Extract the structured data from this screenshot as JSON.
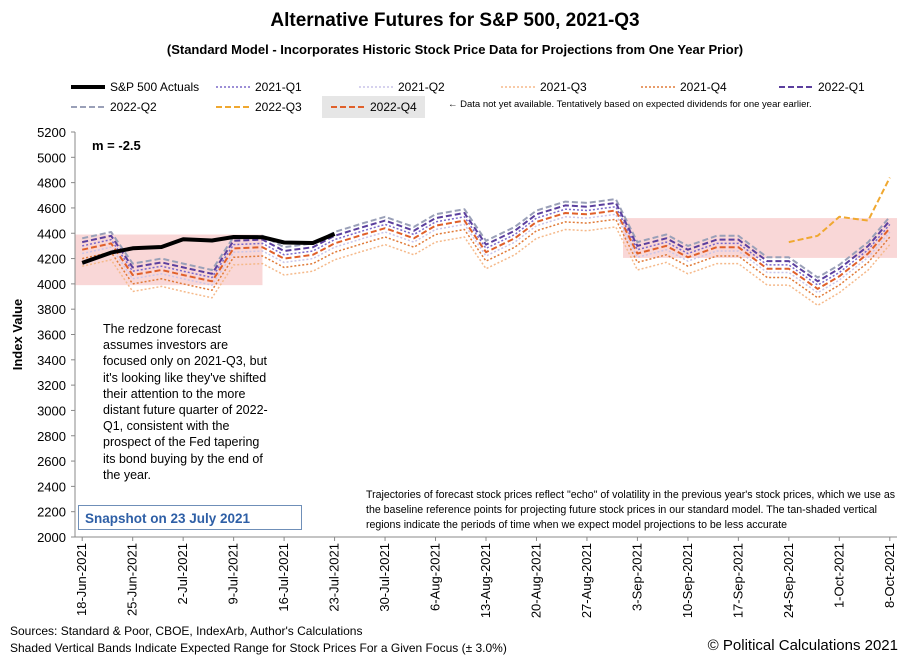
{
  "chart_data": {
    "type": "line",
    "title": "Alternative Futures for S&P 500, 2021-Q3",
    "subtitle": "(Standard Model - Incorporates Historic Stock Price Data for Projections from One Year Prior)",
    "y_label": "Index Value",
    "legend_note": "← Data not yet available.  Tentatively based on expected dividends for one year earlier.",
    "annotation_m": "m = -2.5",
    "annotation_left": "The redzone forecast assumes investors are focused only on 2021-Q3, but it's looking like they've  shifted their attention to the more distant future quarter of 2022-Q1, consistent with the prospect of the Fed tapering its bond buying by the end of the year.",
    "snapshot": "Snapshot on 23 July 2021",
    "annotation_right": "Trajectories of forecast stock prices reflect \"echo\" of volatility in  the previous year's stock prices, which we use as the baseline reference points for projecting future stock prices in our standard model.   The tan-shaded vertical regions indicate the periods of time when we expect model projections to be less accurate",
    "sources": "Sources: Standard & Poor, CBOE, IndexArb, Author's Calculations",
    "sources_note": "Shaded Vertical Bands Indicate Expected Range for Stock Prices For a Given Focus (± 3.0%)",
    "copyright": "© Political Calculations 2021",
    "x": [
      "2021-06-18",
      "2021-06-22",
      "2021-06-25",
      "2021-06-29",
      "2021-07-02",
      "2021-07-06",
      "2021-07-09",
      "2021-07-13",
      "2021-07-16",
      "2021-07-20",
      "2021-07-23",
      "2021-07-27",
      "2021-07-30",
      "2021-08-03",
      "2021-08-06",
      "2021-08-10",
      "2021-08-13",
      "2021-08-17",
      "2021-08-20",
      "2021-08-24",
      "2021-08-27",
      "2021-08-31",
      "2021-09-03",
      "2021-09-07",
      "2021-09-10",
      "2021-09-14",
      "2021-09-17",
      "2021-09-21",
      "2021-09-24",
      "2021-09-28",
      "2021-10-01",
      "2021-10-05",
      "2021-10-08"
    ],
    "xlim": [
      "2021-06-17",
      "2021-10-09"
    ],
    "xticks": [
      {
        "value": "2021-06-18",
        "label": "18-Jun-2021"
      },
      {
        "value": "2021-06-25",
        "label": "25-Jun-2021"
      },
      {
        "value": "2021-07-02",
        "label": "2-Jul-2021"
      },
      {
        "value": "2021-07-09",
        "label": "9-Jul-2021"
      },
      {
        "value": "2021-07-16",
        "label": "16-Jul-2021"
      },
      {
        "value": "2021-07-23",
        "label": "23-Jul-2021"
      },
      {
        "value": "2021-07-30",
        "label": "30-Jul-2021"
      },
      {
        "value": "2021-08-06",
        "label": "6-Aug-2021"
      },
      {
        "value": "2021-08-13",
        "label": "13-Aug-2021"
      },
      {
        "value": "2021-08-20",
        "label": "20-Aug-2021"
      },
      {
        "value": "2021-08-27",
        "label": "27-Aug-2021"
      },
      {
        "value": "2021-09-03",
        "label": "3-Sep-2021"
      },
      {
        "value": "2021-09-10",
        "label": "10-Sep-2021"
      },
      {
        "value": "2021-09-17",
        "label": "17-Sep-2021"
      },
      {
        "value": "2021-09-24",
        "label": "24-Sep-2021"
      },
      {
        "value": "2021-10-01",
        "label": "1-Oct-2021"
      },
      {
        "value": "2021-10-08",
        "label": "8-Oct-2021"
      }
    ],
    "ylim": [
      2000,
      5200
    ],
    "yticks": [
      2000,
      2200,
      2400,
      2600,
      2800,
      3000,
      3200,
      3400,
      3600,
      3800,
      4000,
      4200,
      4400,
      4600,
      4800,
      5000,
      5200
    ],
    "redzone_color": "#f6c6c6",
    "redzones": [
      {
        "from": "2021-06-17",
        "to": "2021-07-13",
        "low": 3990,
        "high": 4390
      },
      {
        "from": "2021-09-01",
        "to": "2021-10-09",
        "low": 4205,
        "high": 4520
      }
    ],
    "series": [
      {
        "name": "S&P 500 Actuals",
        "color": "#000000",
        "dash": "solid",
        "values": [
          4166,
          4247,
          4281,
          4291,
          4352,
          4343,
          4370,
          4369,
          4327,
          4323,
          4395,
          null,
          null,
          null,
          null,
          null,
          null,
          null,
          null,
          null,
          null,
          null,
          null,
          null,
          null,
          null,
          null,
          null,
          null,
          null,
          null,
          null,
          null
        ]
      },
      {
        "name": "2021-Q1",
        "color": "#7b68c8",
        "dash": "dotted",
        "values": [
          4300,
          4350,
          4100,
          4140,
          4100,
          4050,
          4310,
          4320,
          4230,
          4260,
          4350,
          4420,
          4470,
          4390,
          4490,
          4530,
          4280,
          4390,
          4520,
          4590,
          4580,
          4610,
          4270,
          4330,
          4240,
          4320,
          4320,
          4150,
          4150,
          3990,
          4090,
          4270,
          4470
        ]
      },
      {
        "name": "2021-Q2",
        "color": "#c9c4e8",
        "dash": "dotted",
        "values": [
          4240,
          4290,
          4040,
          4080,
          4040,
          3990,
          4250,
          4260,
          4170,
          4200,
          4290,
          4360,
          4410,
          4330,
          4430,
          4470,
          4220,
          4330,
          4460,
          4530,
          4520,
          4550,
          4210,
          4270,
          4180,
          4260,
          4260,
          4090,
          4090,
          3930,
          4030,
          4210,
          4410
        ]
      },
      {
        "name": "2021-Q3",
        "color": "#f5b98a",
        "dash": "dotted",
        "values": [
          4140,
          4190,
          3940,
          3980,
          3940,
          3890,
          4150,
          4160,
          4070,
          4100,
          4190,
          4260,
          4310,
          4230,
          4330,
          4370,
          4120,
          4230,
          4360,
          4430,
          4420,
          4450,
          4110,
          4170,
          4080,
          4160,
          4160,
          3990,
          3990,
          3830,
          3930,
          4110,
          4310
        ]
      },
      {
        "name": "2021-Q4",
        "color": "#e07b39",
        "dash": "dotted",
        "values": [
          4200,
          4250,
          4000,
          4040,
          4000,
          3950,
          4210,
          4220,
          4130,
          4160,
          4250,
          4320,
          4370,
          4290,
          4390,
          4430,
          4180,
          4290,
          4420,
          4490,
          4480,
          4510,
          4170,
          4230,
          4140,
          4220,
          4220,
          4050,
          4050,
          3890,
          3990,
          4170,
          4370
        ]
      },
      {
        "name": "2022-Q1",
        "color": "#5b3f9e",
        "dash": "dashed",
        "values": [
          4330,
          4380,
          4130,
          4170,
          4130,
          4080,
          4340,
          4350,
          4260,
          4290,
          4380,
          4450,
          4500,
          4420,
          4520,
          4560,
          4310,
          4420,
          4550,
          4620,
          4610,
          4640,
          4300,
          4360,
          4270,
          4350,
          4350,
          4180,
          4180,
          4020,
          4120,
          4300,
          4500
        ]
      },
      {
        "name": "2022-Q2",
        "color": "#9aa0b8",
        "dash": "dashed",
        "values": [
          4360,
          4410,
          4160,
          4200,
          4160,
          4110,
          4370,
          4380,
          4290,
          4320,
          4410,
          4480,
          4530,
          4450,
          4550,
          4590,
          4340,
          4450,
          4580,
          4650,
          4640,
          4670,
          4330,
          4390,
          4300,
          4380,
          4380,
          4210,
          4210,
          4050,
          4150,
          4330,
          4530
        ]
      },
      {
        "name": "2022-Q3",
        "color": "#f0a830",
        "dash": "dashed",
        "values": [
          null,
          null,
          null,
          null,
          null,
          null,
          null,
          null,
          null,
          null,
          null,
          null,
          null,
          null,
          null,
          null,
          null,
          null,
          null,
          null,
          null,
          null,
          null,
          null,
          null,
          null,
          null,
          null,
          4330,
          4380,
          4530,
          4500,
          4840
        ]
      },
      {
        "name": "2022-Q4",
        "color": "#e0602a",
        "dash": "dashed",
        "values": [
          4270,
          4320,
          4070,
          4110,
          4070,
          4020,
          4280,
          4290,
          4200,
          4230,
          4320,
          4390,
          4440,
          4360,
          4460,
          4500,
          4250,
          4360,
          4490,
          4560,
          4550,
          4580,
          4240,
          4300,
          4210,
          4290,
          4290,
          4120,
          4120,
          3960,
          4060,
          4240,
          4440
        ]
      }
    ]
  }
}
